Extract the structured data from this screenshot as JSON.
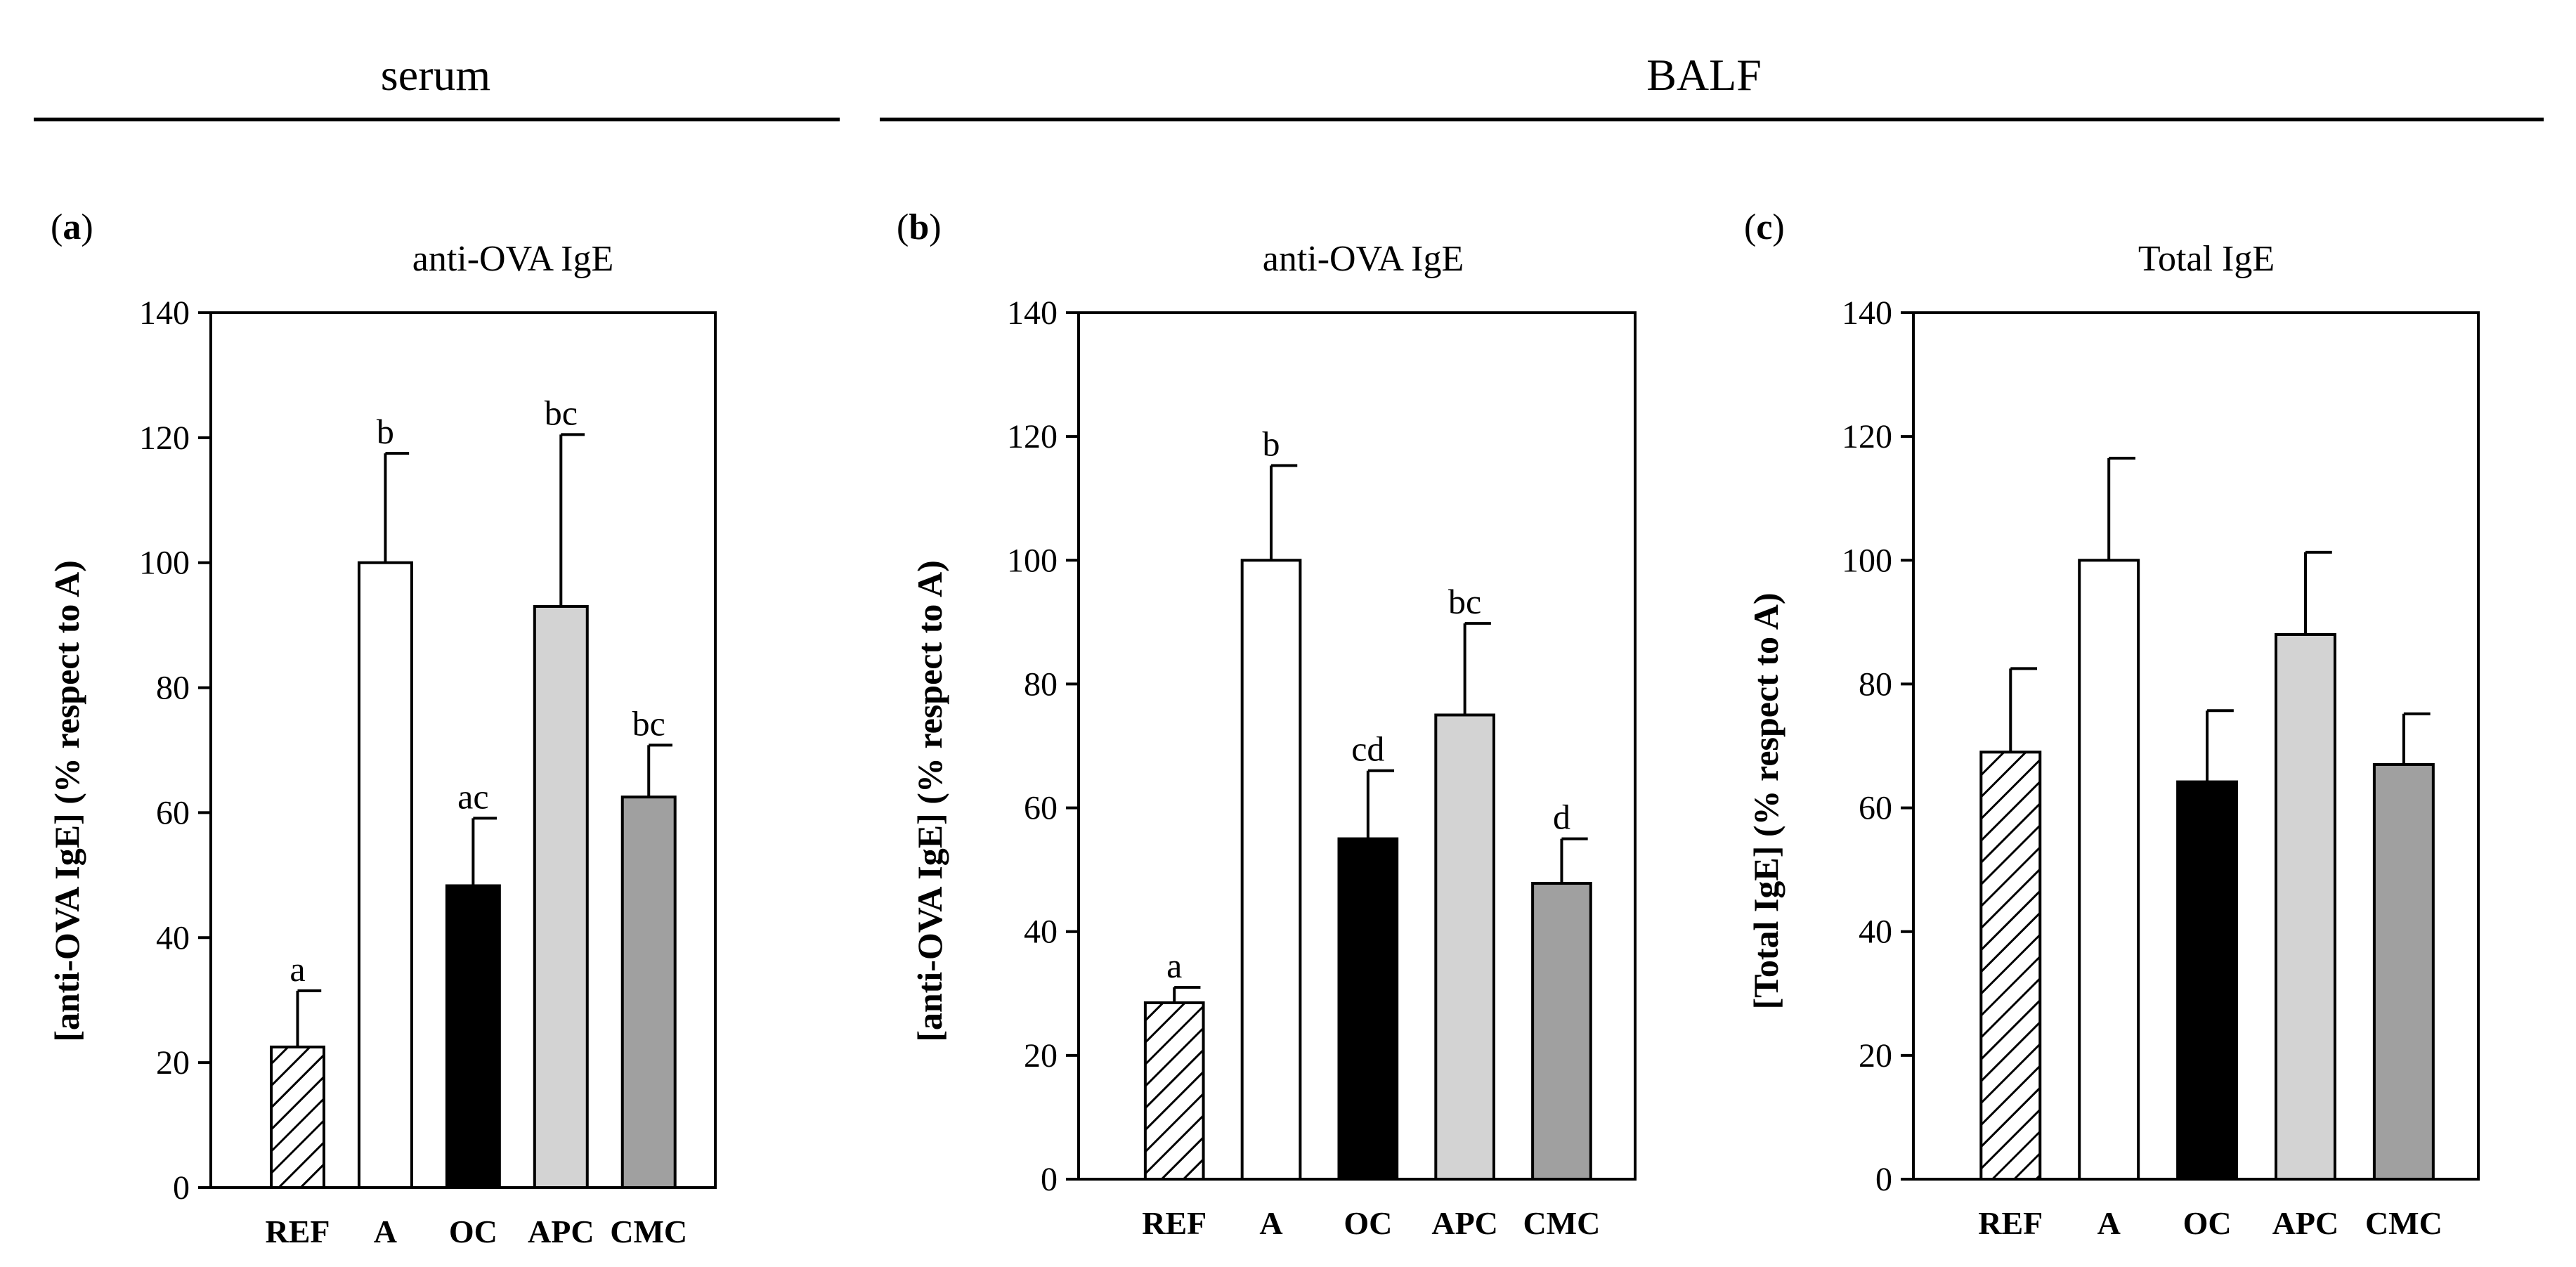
{
  "figure": {
    "sections": [
      {
        "id": "serum",
        "title": "serum"
      },
      {
        "id": "balf",
        "title": "BALF"
      }
    ]
  },
  "chart_data": [
    {
      "type": "bar",
      "panel_label": "a",
      "title": "anti-OVA IgE",
      "section": "serum",
      "xlabel": "",
      "ylabel": "[anti-OVA IgE] (% respect to A)",
      "ylim": [
        0,
        140
      ],
      "yticks": [
        0,
        20,
        40,
        60,
        80,
        100,
        120,
        140
      ],
      "categories": [
        "REF",
        "A",
        "OC",
        "APC",
        "CMC"
      ],
      "values": [
        22.5,
        100,
        48.3,
        93,
        62.5
      ],
      "errors": [
        9,
        17.5,
        10.8,
        27.5,
        8.3
      ],
      "significance": [
        "a",
        "b",
        "ac",
        "bc",
        "bc"
      ]
    },
    {
      "type": "bar",
      "panel_label": "b",
      "title": "anti-OVA IgE",
      "section": "BALF",
      "xlabel": "",
      "ylabel": "[anti-OVA IgE] (% respect to A)",
      "ylim": [
        0,
        140
      ],
      "yticks": [
        0,
        20,
        40,
        60,
        80,
        100,
        120,
        140
      ],
      "categories": [
        "REF",
        "A",
        "OC",
        "APC",
        "CMC"
      ],
      "values": [
        28.5,
        100,
        55,
        75,
        47.8
      ],
      "errors": [
        2.5,
        15.3,
        11,
        14.8,
        7.2
      ],
      "significance": [
        "a",
        "b",
        "cd",
        "bc",
        "d"
      ]
    },
    {
      "type": "bar",
      "panel_label": "c",
      "title": "Total IgE",
      "section": "BALF",
      "xlabel": "",
      "ylabel": "[Total IgE] (% respect to A)",
      "ylim": [
        0,
        140
      ],
      "yticks": [
        0,
        20,
        40,
        60,
        80,
        100,
        120,
        140
      ],
      "categories": [
        "REF",
        "A",
        "OC",
        "APC",
        "CMC"
      ],
      "values": [
        69,
        100,
        64.2,
        88,
        67
      ],
      "errors": [
        13.5,
        16.5,
        11.5,
        13.3,
        8.2
      ],
      "significance": [
        "",
        "",
        "",
        "",
        ""
      ]
    }
  ],
  "style": {
    "bar_fills": [
      "hatch",
      "#ffffff",
      "#000000",
      "#d3d3d3",
      "#a0a0a0"
    ],
    "stroke": "#000000"
  }
}
